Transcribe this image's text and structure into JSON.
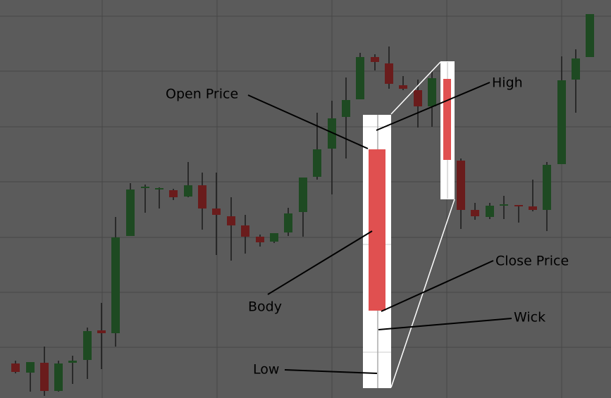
{
  "labels": {
    "open": "Open Price",
    "high": "High",
    "body": "Body",
    "close": "Close Price",
    "wick": "Wick",
    "low": "Low"
  }
}
